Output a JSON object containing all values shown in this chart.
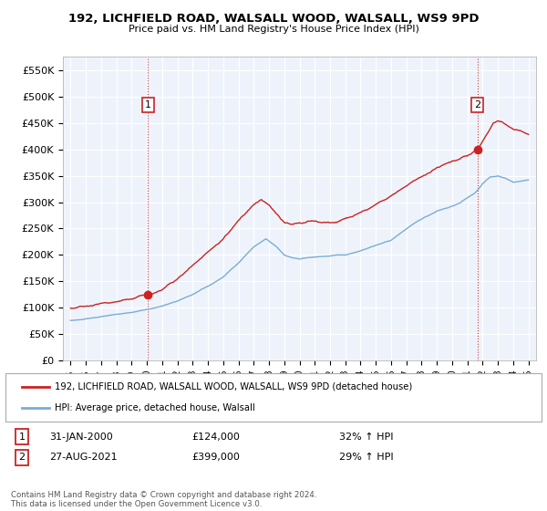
{
  "title": "192, LICHFIELD ROAD, WALSALL WOOD, WALSALL, WS9 9PD",
  "subtitle": "Price paid vs. HM Land Registry's House Price Index (HPI)",
  "legend_line1": "192, LICHFIELD ROAD, WALSALL WOOD, WALSALL, WS9 9PD (detached house)",
  "legend_line2": "HPI: Average price, detached house, Walsall",
  "footnote": "Contains HM Land Registry data © Crown copyright and database right 2024.\nThis data is licensed under the Open Government Licence v3.0.",
  "point1_label": "1",
  "point1_date": "31-JAN-2000",
  "point1_price": "£124,000",
  "point1_hpi": "32% ↑ HPI",
  "point1_x": 2000.08,
  "point1_y": 124000,
  "point2_label": "2",
  "point2_date": "27-AUG-2021",
  "point2_price": "£399,000",
  "point2_hpi": "29% ↑ HPI",
  "point2_x": 2021.65,
  "point2_y": 399000,
  "price_color": "#cc2222",
  "hpi_color": "#7aadd4",
  "ylim_min": 0,
  "ylim_max": 577000,
  "xlim_min": 1994.5,
  "xlim_max": 2025.5,
  "yticks": [
    0,
    50000,
    100000,
    150000,
    200000,
    250000,
    300000,
    350000,
    400000,
    450000,
    500000,
    550000
  ],
  "ytick_labels": [
    "£0",
    "£50K",
    "£100K",
    "£150K",
    "£200K",
    "£250K",
    "£300K",
    "£350K",
    "£400K",
    "£450K",
    "£500K",
    "£550K"
  ],
  "xticks": [
    1995,
    1996,
    1997,
    1998,
    1999,
    2000,
    2001,
    2002,
    2003,
    2004,
    2005,
    2006,
    2007,
    2008,
    2009,
    2010,
    2011,
    2012,
    2013,
    2014,
    2015,
    2016,
    2017,
    2018,
    2019,
    2020,
    2021,
    2022,
    2023,
    2024,
    2025
  ],
  "background_color": "#ffffff",
  "plot_bg_color": "#eef3fb",
  "grid_color": "#ffffff"
}
